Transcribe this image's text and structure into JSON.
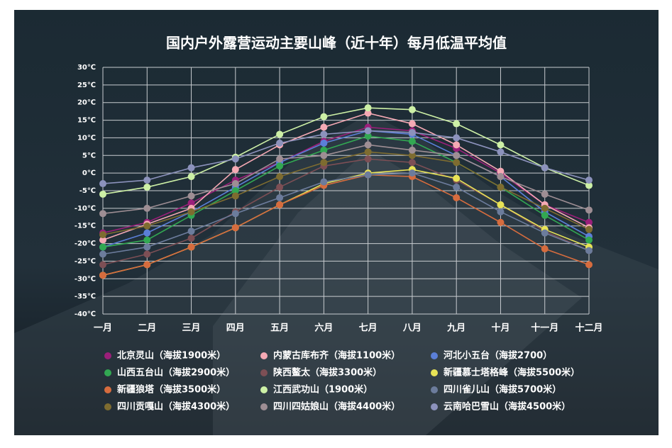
{
  "chart_data": {
    "type": "line",
    "title": "国内户外露营运动主要山峰（近十年）每月低温平均值",
    "categories": [
      "一月",
      "二月",
      "三月",
      "四月",
      "五月",
      "六月",
      "七月",
      "八月",
      "九月",
      "十月",
      "十一月",
      "十二月"
    ],
    "ylim": [
      -40,
      30
    ],
    "yticks": [
      {
        "value": -40,
        "label": "-40℃"
      },
      {
        "value": -35,
        "label": "-35℃"
      },
      {
        "value": -30,
        "label": "-30℃"
      },
      {
        "value": -25,
        "label": "-25℃"
      },
      {
        "value": -20,
        "label": "-20℃"
      },
      {
        "value": -15,
        "label": "-15℃"
      },
      {
        "value": -10,
        "label": "-10℃"
      },
      {
        "value": -5,
        "label": "-5℃"
      },
      {
        "value": 0,
        "label": "0℃"
      },
      {
        "value": 5,
        "label": "5℃"
      },
      {
        "value": 10,
        "label": "10℃"
      },
      {
        "value": 15,
        "label": "15℃"
      },
      {
        "value": 20,
        "label": "20℃"
      },
      {
        "value": 25,
        "label": "25℃"
      },
      {
        "value": 30,
        "label": "30℃"
      }
    ],
    "grid": true,
    "series": [
      {
        "name": "北京灵山（海拔1900米）",
        "color": "#9b1f7a",
        "values": [
          -17,
          -14,
          -8.5,
          -2,
          3,
          9,
          13,
          12,
          7,
          0,
          -9,
          -14
        ]
      },
      {
        "name": "内蒙古库布齐（海拔1100米）",
        "color": "#f5a9b4",
        "values": [
          -19,
          -14.5,
          -10,
          1,
          8,
          13,
          17,
          14,
          8,
          0.5,
          -9,
          -15.5
        ]
      },
      {
        "name": "河北小五台（海拔2700）",
        "color": "#5b7fd8",
        "values": [
          -21,
          -17,
          -11,
          -4,
          3,
          8.5,
          12,
          11,
          5,
          -1,
          -11,
          -18
        ]
      },
      {
        "name": "山西五台山（海拔2900米）",
        "color": "#32a852",
        "values": [
          -21,
          -19,
          -12,
          -5,
          2,
          6.5,
          10.5,
          9,
          3,
          -4,
          -12,
          -19
        ]
      },
      {
        "name": "陕西鳌太（海拔3300米）",
        "color": "#7d4f55",
        "values": [
          -26,
          -23,
          -18.5,
          -11,
          -4,
          2,
          4,
          3,
          -2,
          -9,
          -16.5,
          -22
        ]
      },
      {
        "name": "新疆慕士塔格峰（海拔5500米）",
        "color": "#e8e356",
        "values": [
          -29,
          -26,
          -21,
          -15.5,
          -9,
          -3,
          0,
          1,
          -1.5,
          -9,
          -16,
          -21
        ]
      },
      {
        "name": "新疆狼塔（海拔3500米）",
        "color": "#d66c3e",
        "values": [
          -29,
          -26,
          -21,
          -15.5,
          -9,
          -3.5,
          -0.5,
          -1,
          -7,
          -14,
          -21.5,
          -26
        ]
      },
      {
        "name": "江西武功山（1900米）",
        "color": "#cdf0a6",
        "values": [
          -6,
          -4,
          -1,
          4.5,
          11,
          16,
          18.5,
          18,
          14,
          8,
          1.5,
          -3.5
        ]
      },
      {
        "name": "四川雀儿山（海拔5700米）",
        "color": "#6c7c9c",
        "values": [
          -23,
          -21,
          -16.5,
          -11.5,
          -7,
          -2.5,
          -0.5,
          0,
          -4,
          -11,
          -17,
          -22
        ]
      },
      {
        "name": "四川贡嘎山（海拔4300米）",
        "color": "#7e6c30",
        "values": [
          -17.5,
          -15,
          -11,
          -6.5,
          -1,
          3,
          6,
          5,
          3,
          -4,
          -10,
          -16
        ]
      },
      {
        "name": "四川四姑娘山（海拔4400米）",
        "color": "#9e8e94",
        "values": [
          -11.5,
          -10,
          -6.5,
          -3,
          4,
          5,
          8,
          6.5,
          5,
          -1,
          -6,
          -10.5
        ]
      },
      {
        "name": "云南哈巴雪山（海拔4500米）",
        "color": "#8c92bc",
        "values": [
          -3,
          -2,
          1.5,
          4,
          8.5,
          11,
          12,
          11.5,
          10,
          6,
          1.5,
          -2
        ]
      }
    ]
  }
}
